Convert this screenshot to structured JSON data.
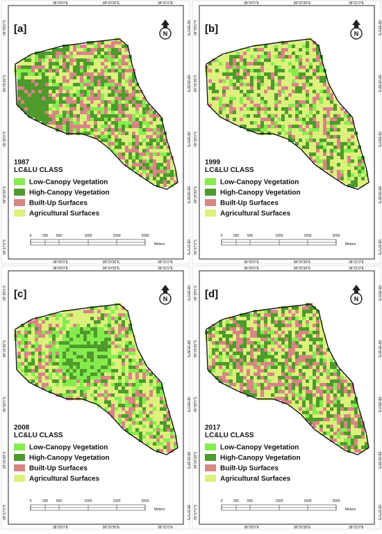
{
  "map": {
    "panels": [
      {
        "label": "[a]",
        "year": "1987"
      },
      {
        "label": "[b]",
        "year": "1999"
      },
      {
        "label": "[c]",
        "year": "2008"
      },
      {
        "label": "[d]",
        "year": "2017"
      }
    ],
    "legend_title": "LC&LU CLASS",
    "classes": [
      {
        "name": "Low-Canopy Vegetation",
        "color": "#86ec4e"
      },
      {
        "name": "High-Canopy Vegetation",
        "color": "#4f9a2c"
      },
      {
        "name": "Built-Up Surfaces",
        "color": "#d88585"
      },
      {
        "name": "Agricultural Surfaces",
        "color": "#dcf07c"
      }
    ],
    "lon_labels": [
      "38°20'0\"E",
      "38°20'30\"E",
      "38°21'0\"E"
    ],
    "lat_labels": [
      "09°25'0\"S",
      "09°25'30\"S",
      "09°26'0\"S",
      "09°26'30\"S",
      "09°27'0\"S"
    ],
    "scale_labels": [
      "0",
      "250",
      "500",
      "1000",
      "1500",
      "2000"
    ],
    "scale_unit": "Meters",
    "north": "N"
  }
}
